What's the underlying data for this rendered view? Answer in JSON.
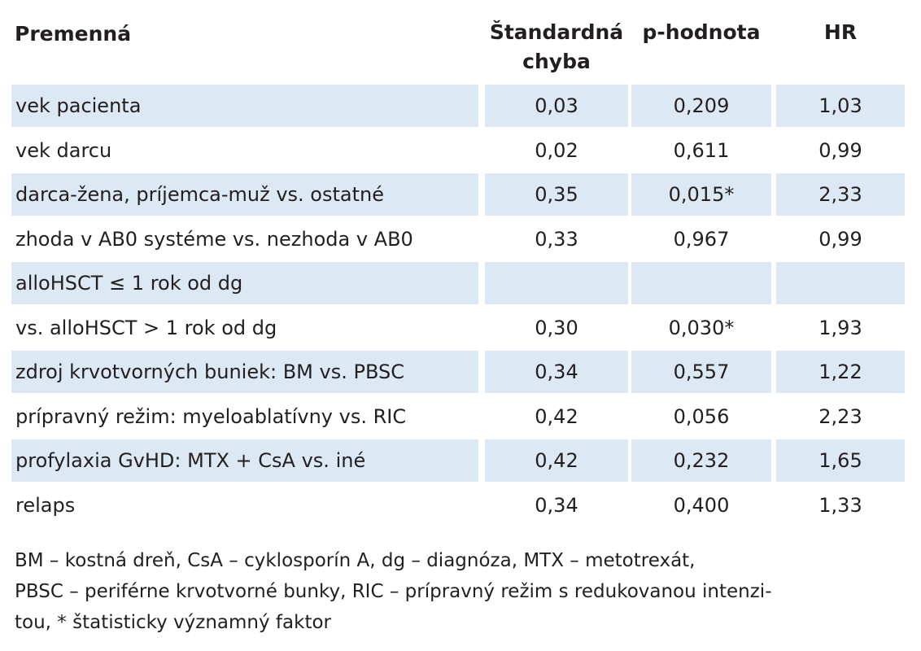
{
  "table": {
    "headers": {
      "variable": "Premenná",
      "std_error_line1": "Štandardná",
      "std_error_line2": "chyba",
      "p_value": "p-hodnota",
      "hr": "HR"
    },
    "rows": [
      {
        "variable": "vek pacienta",
        "std_error": "0,03",
        "p_value": "0,209",
        "hr": "1,03",
        "shaded": true
      },
      {
        "variable": "vek darcu",
        "std_error": "0,02",
        "p_value": "0,611",
        "hr": "0,99",
        "shaded": false
      },
      {
        "variable": "darca-žena, príjemca-muž vs. ostatné",
        "std_error": "0,35",
        "p_value": "0,015*",
        "hr": "2,33",
        "shaded": true
      },
      {
        "variable": "zhoda v AB0 systéme vs. nezhoda v AB0",
        "std_error": "0,33",
        "p_value": "0,967",
        "hr": "0,99",
        "shaded": false
      },
      {
        "variable": "alloHSCT ≤ 1 rok od dg",
        "std_error": "",
        "p_value": "",
        "hr": "",
        "shaded": true
      },
      {
        "variable": "vs. alloHSCT > 1 rok od dg",
        "std_error": "0,30",
        "p_value": "0,030*",
        "hr": "1,93",
        "shaded": false
      },
      {
        "variable": "zdroj krvotvorných buniek: BM vs. PBSC",
        "std_error": "0,34",
        "p_value": "0,557",
        "hr": "1,22",
        "shaded": true
      },
      {
        "variable": "prípravný režim: myeloablatívny vs. RIC",
        "std_error": "0,42",
        "p_value": "0,056",
        "hr": "2,23",
        "shaded": false
      },
      {
        "variable": "profylaxia GvHD: MTX + CsA vs. iné",
        "std_error": "0,42",
        "p_value": "0,232",
        "hr": "1,65",
        "shaded": true
      },
      {
        "variable": "relaps",
        "std_error": "0,34",
        "p_value": "0,400",
        "hr": "1,33",
        "shaded": false
      }
    ]
  },
  "footnote": {
    "line1": "BM – kostná dreň, CsA – cyklosporín A, dg – diagnóza, MTX – metotrexát,",
    "line2": "PBSC – periférne krvotvorné bunky, RIC – prípravný režim s redukovanou intenzi-",
    "line3": "tou, * štatisticky významný faktor"
  },
  "colors": {
    "row_shading": "#dce8f4",
    "text": "#231f20"
  }
}
